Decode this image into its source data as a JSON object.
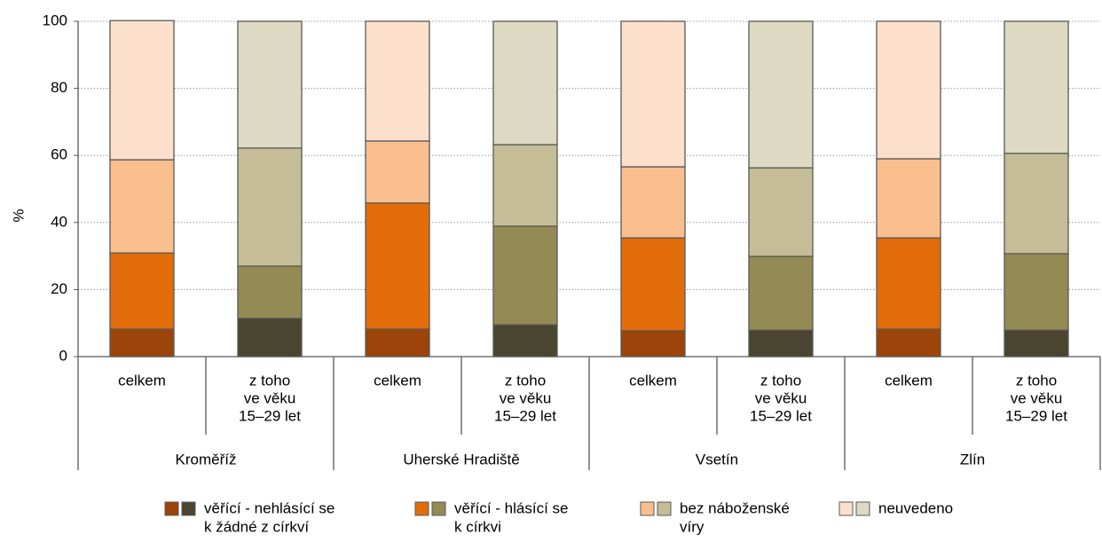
{
  "chart_data": {
    "type": "stacked-bar",
    "ylabel": "%",
    "ylim": [
      0,
      100
    ],
    "yticks": [
      0,
      20,
      40,
      60,
      80,
      100
    ],
    "grid": true,
    "groups": [
      "Kroměříž",
      "Uherské Hradiště",
      "Vsetín",
      "Zlín"
    ],
    "categories": [
      [
        "celkem"
      ],
      [
        "z toho",
        "ve věku",
        "15–29 let"
      ],
      [
        "celkem"
      ],
      [
        "z toho",
        "ve věku",
        "15–29 let"
      ],
      [
        "celkem"
      ],
      [
        "z toho",
        "ve věku",
        "15–29 let"
      ],
      [
        "celkem"
      ],
      [
        "z toho",
        "ve věku",
        "15–29 let"
      ]
    ],
    "series": [
      {
        "name": [
          "věřící - nehlásící se",
          "k žádné z církví"
        ],
        "colors": [
          "#9c4409",
          "#4a4530"
        ],
        "values": [
          8.2,
          11.4,
          8.2,
          9.5,
          7.7,
          7.9,
          8.2,
          7.9
        ]
      },
      {
        "name": [
          "věřící - hlásící se",
          "k církvi"
        ],
        "colors": [
          "#e36c0a",
          "#948a54"
        ],
        "values": [
          22.7,
          15.6,
          37.6,
          29.4,
          27.7,
          22.0,
          27.2,
          22.8
        ]
      },
      {
        "name": [
          "bez náboženské",
          "víry"
        ],
        "colors": [
          "#fabf8f",
          "#c4bd97"
        ],
        "values": [
          27.8,
          35.2,
          18.5,
          24.3,
          21.2,
          26.4,
          23.6,
          29.9
        ]
      },
      {
        "name": [
          "neuvedeno"
        ],
        "colors": [
          "#fde0cb",
          "#ddd9c3"
        ],
        "values": [
          41.5,
          37.8,
          35.7,
          36.8,
          43.4,
          43.7,
          41.0,
          39.4
        ]
      }
    ]
  }
}
